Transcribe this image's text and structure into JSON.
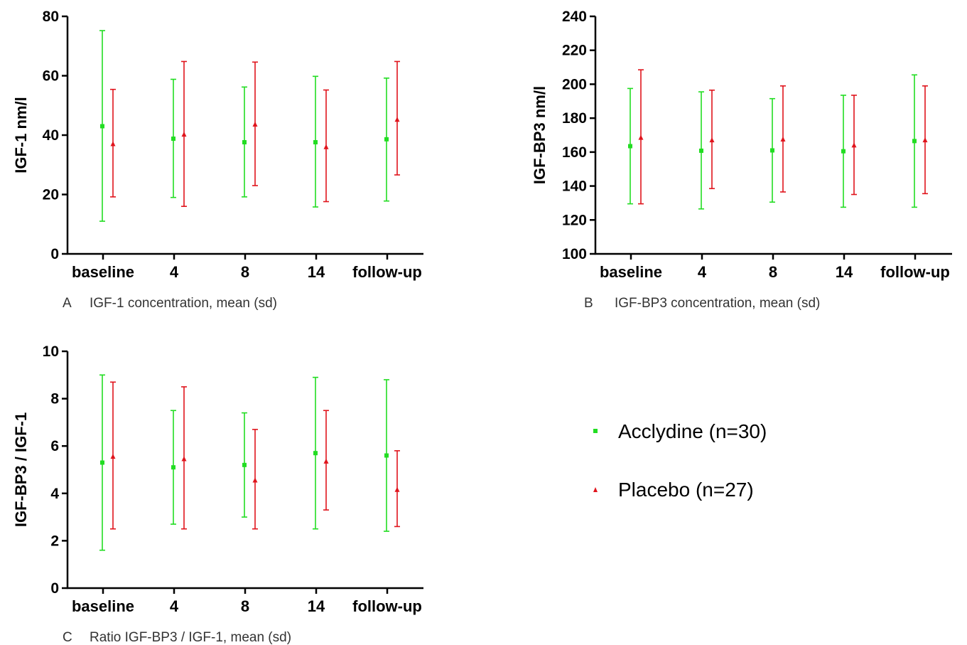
{
  "colors": {
    "acclydine": "#22dd22",
    "placebo": "#e0141c",
    "axis": "#000000"
  },
  "legend": {
    "acclydine": "Acclydine (n=30)",
    "placebo": "Placebo (n=27)"
  },
  "chart_data": [
    {
      "type": "scatter",
      "panel": "A",
      "caption_letter": "A",
      "caption": "IGF-1 concentration, mean (sd)",
      "ylabel": "IGF-1 nm/l",
      "xlabel": "",
      "categories": [
        "baseline",
        "4",
        "8",
        "14",
        "follow-up"
      ],
      "ylim": [
        0,
        80
      ],
      "yticks": [
        0,
        20,
        40,
        60,
        80
      ],
      "series": [
        {
          "name": "Acclydine (n=30)",
          "marker": "square",
          "mean": [
            43,
            38.8,
            37.6,
            37.6,
            38.6
          ],
          "low": [
            11,
            19,
            19.2,
            15.8,
            17.8
          ],
          "high": [
            75.2,
            58.8,
            56.2,
            59.8,
            59.2
          ]
        },
        {
          "name": "Placebo (n=27)",
          "marker": "triangle",
          "mean": [
            37,
            40.2,
            43.6,
            36,
            45.2
          ],
          "low": [
            19.2,
            16,
            23,
            17.6,
            26.6
          ],
          "high": [
            55.4,
            64.8,
            64.6,
            55.2,
            64.8
          ]
        }
      ]
    },
    {
      "type": "scatter",
      "panel": "B",
      "caption_letter": "B",
      "caption": "IGF-BP3 concentration, mean (sd)",
      "ylabel": "IGF-BP3 nm/l",
      "xlabel": "",
      "categories": [
        "baseline",
        "4",
        "8",
        "14",
        "follow-up"
      ],
      "ylim": [
        100,
        240
      ],
      "yticks": [
        100,
        120,
        140,
        160,
        180,
        200,
        220,
        240
      ],
      "series": [
        {
          "name": "Acclydine (n=30)",
          "marker": "square",
          "mean": [
            163.5,
            160.8,
            161,
            160.5,
            166.5
          ],
          "low": [
            129.5,
            126.5,
            130.5,
            127.5,
            127.5
          ],
          "high": [
            197.5,
            195.5,
            191.5,
            193.5,
            205.5
          ]
        },
        {
          "name": "Placebo (n=27)",
          "marker": "triangle",
          "mean": [
            168.5,
            167,
            167.5,
            164,
            167
          ],
          "low": [
            129.5,
            138.5,
            136.5,
            135,
            135.5
          ],
          "high": [
            208.5,
            196.5,
            199,
            193.5,
            199
          ]
        }
      ]
    },
    {
      "type": "scatter",
      "panel": "C",
      "caption_letter": "C",
      "caption": "Ratio IGF-BP3 / IGF-1, mean (sd)",
      "ylabel": "IGF-BP3 / IGF-1",
      "xlabel": "",
      "categories": [
        "baseline",
        "4",
        "8",
        "14",
        "follow-up"
      ],
      "ylim": [
        0,
        10
      ],
      "yticks": [
        0,
        2,
        4,
        6,
        8,
        10
      ],
      "series": [
        {
          "name": "Acclydine (n=30)",
          "marker": "square",
          "mean": [
            5.3,
            5.1,
            5.2,
            5.7,
            5.6
          ],
          "low": [
            1.6,
            2.7,
            3.0,
            2.5,
            2.4
          ],
          "high": [
            9.0,
            7.5,
            7.4,
            8.9,
            8.8
          ]
        },
        {
          "name": "Placebo (n=27)",
          "marker": "triangle",
          "mean": [
            5.55,
            5.45,
            4.55,
            5.35,
            4.15
          ],
          "low": [
            2.5,
            2.5,
            2.5,
            3.3,
            2.6
          ],
          "high": [
            8.7,
            8.5,
            6.7,
            7.5,
            5.8
          ]
        }
      ]
    }
  ]
}
